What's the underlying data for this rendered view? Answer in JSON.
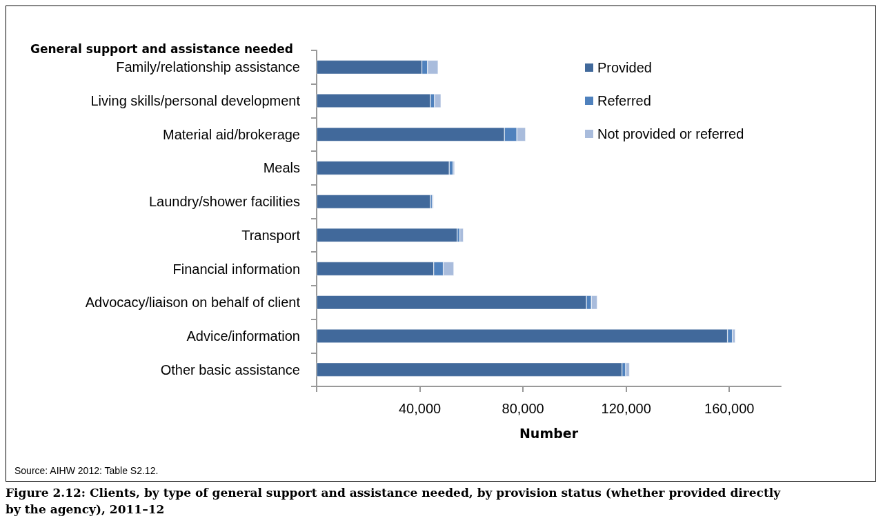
{
  "chart_data": {
    "type": "bar",
    "orientation": "horizontal",
    "stacked": true,
    "title": "General support and assistance needed",
    "xlabel": "Number",
    "categories": [
      "Family/relationship assistance",
      "Living skills/personal development",
      "Material aid/brokerage",
      "Meals",
      "Laundry/shower facilities",
      "Transport",
      "Financial information",
      "Advocacy/liaison on behalf of client",
      "Advice/information",
      "Other basic assistance"
    ],
    "series": [
      {
        "name": "Provided",
        "color": "#41699b",
        "values": [
          40800,
          44100,
          72800,
          51400,
          44100,
          54500,
          45400,
          104600,
          159300,
          118400
        ]
      },
      {
        "name": "Referred",
        "color": "#4f81bd",
        "values": [
          2200,
          1600,
          4800,
          1500,
          700,
          1000,
          3700,
          1900,
          1900,
          1400
        ]
      },
      {
        "name": "Not provided or referred",
        "color": "#a9bcdc",
        "values": [
          4100,
          2500,
          3400,
          600,
          500,
          1400,
          4100,
          2300,
          1100,
          1500
        ]
      }
    ],
    "xlim": [
      0,
      180000
    ],
    "xticks": [
      {
        "value": 0,
        "label": null
      },
      {
        "value": 40000,
        "label": "40,000"
      },
      {
        "value": 80000,
        "label": "80,000"
      },
      {
        "value": 120000,
        "label": "120,000"
      },
      {
        "value": 160000,
        "label": "160,000"
      }
    ],
    "legend": "top right",
    "annotations": [
      "Source: AIHW 2012: Table S2.12.",
      "Figure 2.12: Clients, by type of general support and assistance needed, by provision status (whether provided directly by the agency), 2011–12"
    ]
  }
}
